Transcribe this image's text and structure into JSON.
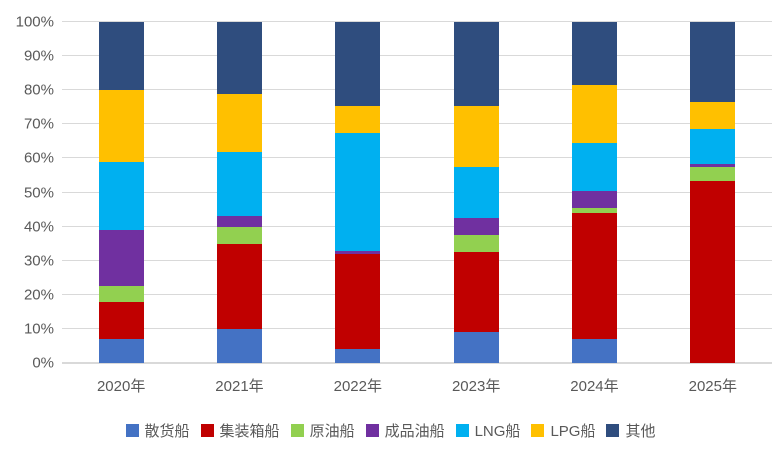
{
  "chart_data": {
    "type": "bar",
    "stacked": true,
    "percent_stacked": true,
    "title": "",
    "xlabel": "",
    "ylabel": "",
    "ylim": [
      0,
      100
    ],
    "grid": true,
    "legend_position": "bottom",
    "yticks": [
      "0%",
      "10%",
      "20%",
      "30%",
      "40%",
      "50%",
      "60%",
      "70%",
      "80%",
      "90%",
      "100%"
    ],
    "categories": [
      "2020年",
      "2021年",
      "2022年",
      "2023年",
      "2024年",
      "2025年"
    ],
    "series": [
      {
        "name": "散货船",
        "color": "#4472C4",
        "values": [
          7,
          10,
          4,
          9,
          7,
          0
        ]
      },
      {
        "name": "集装箱船",
        "color": "#C00000",
        "values": [
          11,
          25,
          28,
          23.5,
          37,
          53.5
        ]
      },
      {
        "name": "原油船",
        "color": "#92D050",
        "values": [
          4.5,
          5,
          0,
          5,
          1.5,
          4
        ]
      },
      {
        "name": "成品油船",
        "color": "#7030A0",
        "values": [
          16.5,
          3,
          1,
          5,
          5,
          1
        ]
      },
      {
        "name": "LNG船",
        "color": "#00B0F0",
        "values": [
          20,
          19,
          34.5,
          15,
          14,
          10
        ]
      },
      {
        "name": "LPG船",
        "color": "#FFC000",
        "values": [
          21,
          17,
          8,
          18,
          17,
          8
        ]
      },
      {
        "name": "其他",
        "color": "#2F4D7E",
        "values": [
          20,
          21,
          24.5,
          24.5,
          18.5,
          23.5
        ]
      }
    ]
  },
  "colors": {
    "background": "#FFFFFF",
    "gridline": "#D9D9D9",
    "axis_text": "#595959"
  }
}
